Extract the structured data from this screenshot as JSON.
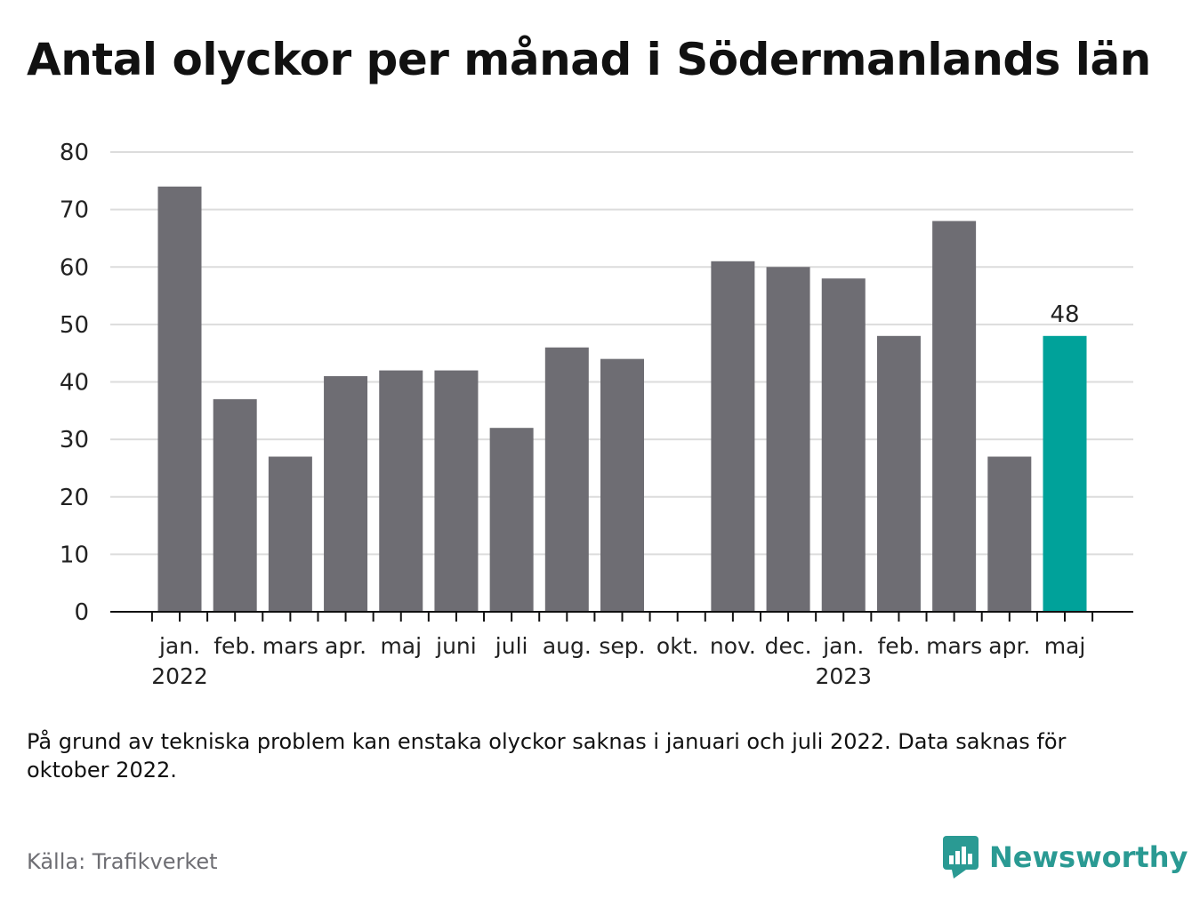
{
  "title": "Antal olyckor per månad i Södermanlands län",
  "note": "På grund av tekniska problem kan enstaka olyckor saknas i januari och juli 2022. Data saknas för oktober 2022.",
  "source": "Källa: Trafikverket",
  "brand": {
    "name": "Newsworthy",
    "icon": "newsworthy-bar-chart-icon",
    "color": "#2a9a93"
  },
  "colors": {
    "bar": "#6e6d73",
    "highlight": "#00a29a",
    "grid": "#dcdcdc",
    "axis": "#111111",
    "text": "#222222"
  },
  "chart_data": {
    "type": "bar",
    "categories": [
      "jan.",
      "feb.",
      "mars",
      "apr.",
      "maj",
      "juni",
      "juli",
      "aug.",
      "sep.",
      "okt.",
      "nov.",
      "dec.",
      "jan.",
      "feb.",
      "mars",
      "apr.",
      "maj"
    ],
    "year_labels": [
      {
        "category_index": 0,
        "label": "2022"
      },
      {
        "category_index": 12,
        "label": "2023"
      }
    ],
    "values": [
      74,
      37,
      27,
      41,
      42,
      42,
      32,
      46,
      44,
      null,
      61,
      60,
      58,
      48,
      68,
      27,
      48
    ],
    "highlight_index": 16,
    "data_labels": [
      {
        "index": 16,
        "label": "48"
      }
    ],
    "ylim": [
      0,
      80
    ],
    "yticks": [
      0,
      10,
      20,
      30,
      40,
      50,
      60,
      70,
      80
    ],
    "grid": true,
    "legend": "none",
    "xlabel": "",
    "ylabel": ""
  }
}
